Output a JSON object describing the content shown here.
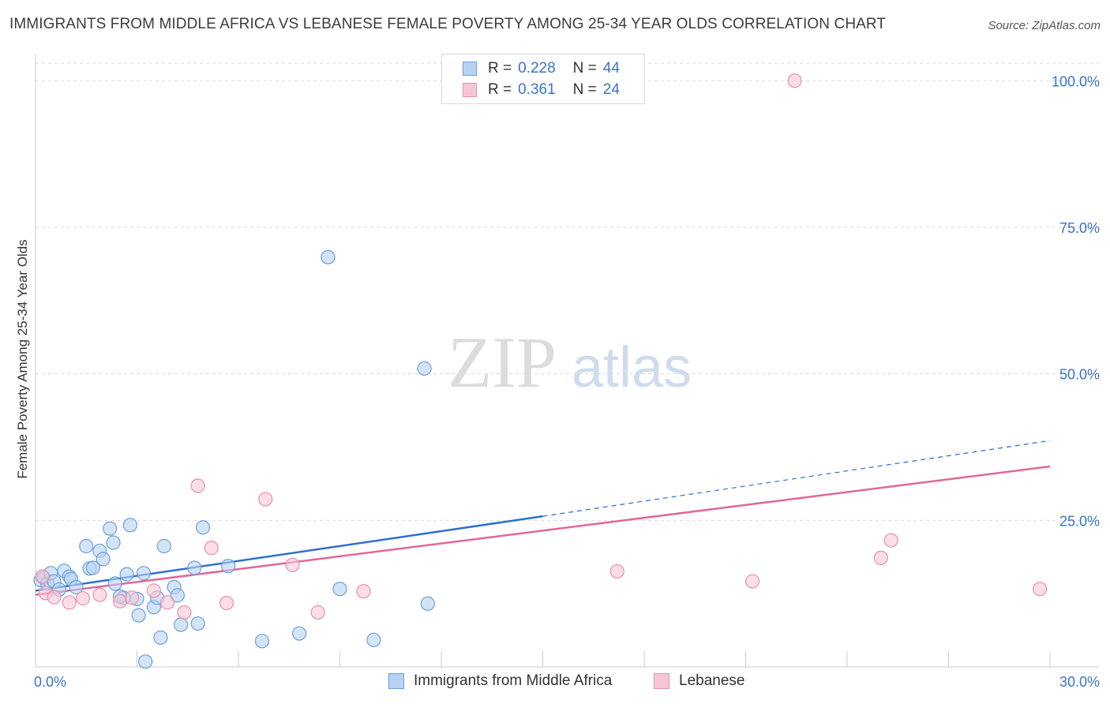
{
  "title": "IMMIGRANTS FROM MIDDLE AFRICA VS LEBANESE FEMALE POVERTY AMONG 25-34 YEAR OLDS CORRELATION CHART",
  "source": "Source: ZipAtlas.com",
  "watermark": {
    "zip": "ZIP",
    "atlas": "atlas"
  },
  "legend": {
    "r_label": "R =",
    "n_label": "N =",
    "series": [
      {
        "r": "0.228",
        "n": "44"
      },
      {
        "r": "0.361",
        "n": "24"
      }
    ]
  },
  "colors": {
    "blue_fill": "#b7d2f2",
    "blue_stroke": "#6d9fdc",
    "blue_line": "#2f6fcf",
    "pink_fill": "#f7c6d6",
    "pink_stroke": "#e890ad",
    "pink_line": "#e0679a",
    "tick_label": "#3a74c9",
    "grid": "#d9d9d9"
  },
  "chart_data": {
    "type": "scatter",
    "title": "IMMIGRANTS FROM MIDDLE AFRICA VS LEBANESE FEMALE POVERTY AMONG 25-34 YEAR OLDS CORRELATION CHART",
    "xlabel": "",
    "ylabel": "Female Poverty Among 25-34 Year Olds",
    "xlim": [
      0,
      30
    ],
    "ylim": [
      0,
      103
    ],
    "x_tick_labels": [
      {
        "value": 0,
        "label": "0.0%"
      },
      {
        "value": 30,
        "label": "30.0%"
      }
    ],
    "y_tick_labels": [
      {
        "value": 25,
        "label": "25.0%"
      },
      {
        "value": 50,
        "label": "50.0%"
      },
      {
        "value": 75,
        "label": "75.0%"
      },
      {
        "value": 100,
        "label": "100.0%"
      }
    ],
    "series": [
      {
        "name": "Immigrants from Middle Africa",
        "color": "#6d9fdc",
        "points": [
          [
            0.15,
            14.8
          ],
          [
            0.25,
            15.2
          ],
          [
            0.35,
            14.2
          ],
          [
            0.45,
            16.0
          ],
          [
            0.55,
            14.6
          ],
          [
            0.7,
            13.2
          ],
          [
            0.85,
            16.4
          ],
          [
            1.0,
            15.4
          ],
          [
            1.05,
            15.0
          ],
          [
            1.2,
            13.6
          ],
          [
            1.5,
            20.6
          ],
          [
            1.6,
            16.8
          ],
          [
            1.7,
            16.9
          ],
          [
            1.9,
            19.8
          ],
          [
            2.0,
            18.4
          ],
          [
            2.2,
            23.6
          ],
          [
            2.3,
            21.2
          ],
          [
            2.35,
            14.2
          ],
          [
            2.6,
            11.8
          ],
          [
            2.7,
            15.8
          ],
          [
            2.8,
            24.2
          ],
          [
            3.0,
            11.6
          ],
          [
            3.05,
            8.8
          ],
          [
            3.2,
            16.0
          ],
          [
            3.25,
            0.9
          ],
          [
            3.5,
            10.2
          ],
          [
            3.6,
            11.8
          ],
          [
            3.7,
            5.0
          ],
          [
            3.8,
            20.6
          ],
          [
            4.1,
            13.6
          ],
          [
            4.2,
            12.2
          ],
          [
            4.3,
            7.2
          ],
          [
            4.7,
            16.9
          ],
          [
            4.8,
            7.4
          ],
          [
            4.95,
            23.8
          ],
          [
            5.7,
            17.2
          ],
          [
            6.7,
            4.4
          ],
          [
            7.8,
            5.7
          ],
          [
            8.65,
            69.9
          ],
          [
            9.0,
            13.3
          ],
          [
            10.0,
            4.6
          ],
          [
            11.6,
            10.8
          ],
          [
            11.5,
            50.9
          ],
          [
            2.5,
            12.0
          ]
        ]
      },
      {
        "name": "Lebanese",
        "color": "#e890ad",
        "points": [
          [
            0.2,
            15.4
          ],
          [
            0.3,
            12.6
          ],
          [
            0.55,
            11.9
          ],
          [
            1.0,
            11.0
          ],
          [
            1.4,
            11.7
          ],
          [
            1.9,
            12.3
          ],
          [
            2.5,
            11.2
          ],
          [
            2.85,
            11.8
          ],
          [
            3.5,
            13.0
          ],
          [
            3.9,
            11.0
          ],
          [
            4.4,
            9.3
          ],
          [
            4.8,
            30.9
          ],
          [
            5.2,
            20.3
          ],
          [
            5.65,
            10.9
          ],
          [
            6.8,
            28.6
          ],
          [
            7.6,
            17.4
          ],
          [
            8.35,
            9.3
          ],
          [
            9.7,
            12.9
          ],
          [
            17.2,
            16.3
          ],
          [
            21.2,
            14.6
          ],
          [
            22.45,
            100.0
          ],
          [
            25.0,
            18.6
          ],
          [
            25.3,
            21.6
          ],
          [
            29.7,
            13.3
          ]
        ]
      }
    ],
    "trend_lines": [
      {
        "series": "Immigrants from Middle Africa",
        "x0": 0,
        "y0": 13.0,
        "x1": 15.0,
        "y1": 25.7,
        "dashed_to_x": 30,
        "dashed_to_y": 38.6
      },
      {
        "series": "Lebanese",
        "x0": 0,
        "y0": 12.3,
        "x1": 30,
        "y1": 34.2
      }
    ]
  }
}
